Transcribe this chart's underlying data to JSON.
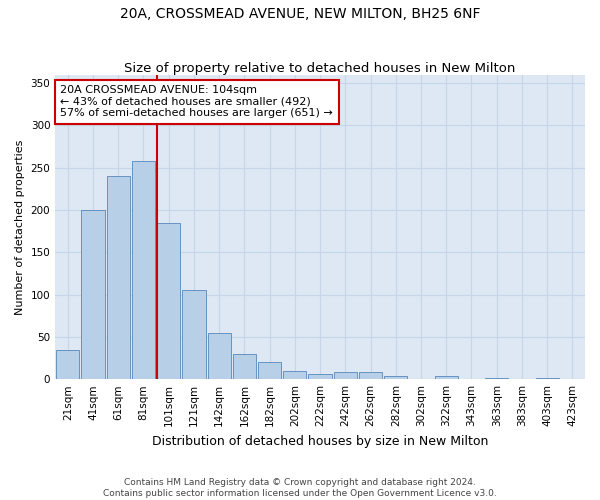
{
  "title": "20A, CROSSMEAD AVENUE, NEW MILTON, BH25 6NF",
  "subtitle": "Size of property relative to detached houses in New Milton",
  "xlabel": "Distribution of detached houses by size in New Milton",
  "ylabel": "Number of detached properties",
  "categories": [
    "21sqm",
    "41sqm",
    "61sqm",
    "81sqm",
    "101sqm",
    "121sqm",
    "142sqm",
    "162sqm",
    "182sqm",
    "202sqm",
    "222sqm",
    "242sqm",
    "262sqm",
    "282sqm",
    "302sqm",
    "322sqm",
    "343sqm",
    "363sqm",
    "383sqm",
    "403sqm",
    "423sqm"
  ],
  "values": [
    35,
    200,
    240,
    258,
    185,
    105,
    55,
    30,
    20,
    10,
    6,
    8,
    8,
    4,
    0,
    4,
    0,
    1,
    0,
    1,
    0
  ],
  "bar_color": "#b8cfe8",
  "bar_edge_color": "#5588bb",
  "bar_edge_width": 0.6,
  "vline_index": 4,
  "vline_color": "#cc0000",
  "annotation_line1": "20A CROSSMEAD AVENUE: 104sqm",
  "annotation_line2": "← 43% of detached houses are smaller (492)",
  "annotation_line3": "57% of semi-detached houses are larger (651) →",
  "annotation_box_color": "#ffffff",
  "annotation_box_edge_color": "#cc0000",
  "grid_color": "#c8d4e8",
  "background_color": "#dde8f4",
  "ylim": [
    0,
    360
  ],
  "yticks": [
    0,
    50,
    100,
    150,
    200,
    250,
    300,
    350
  ],
  "footnote": "Contains HM Land Registry data © Crown copyright and database right 2024.\nContains public sector information licensed under the Open Government Licence v3.0.",
  "title_fontsize": 10,
  "subtitle_fontsize": 9.5,
  "xlabel_fontsize": 9,
  "ylabel_fontsize": 8,
  "tick_fontsize": 7.5,
  "annotation_fontsize": 8,
  "footnote_fontsize": 6.5
}
